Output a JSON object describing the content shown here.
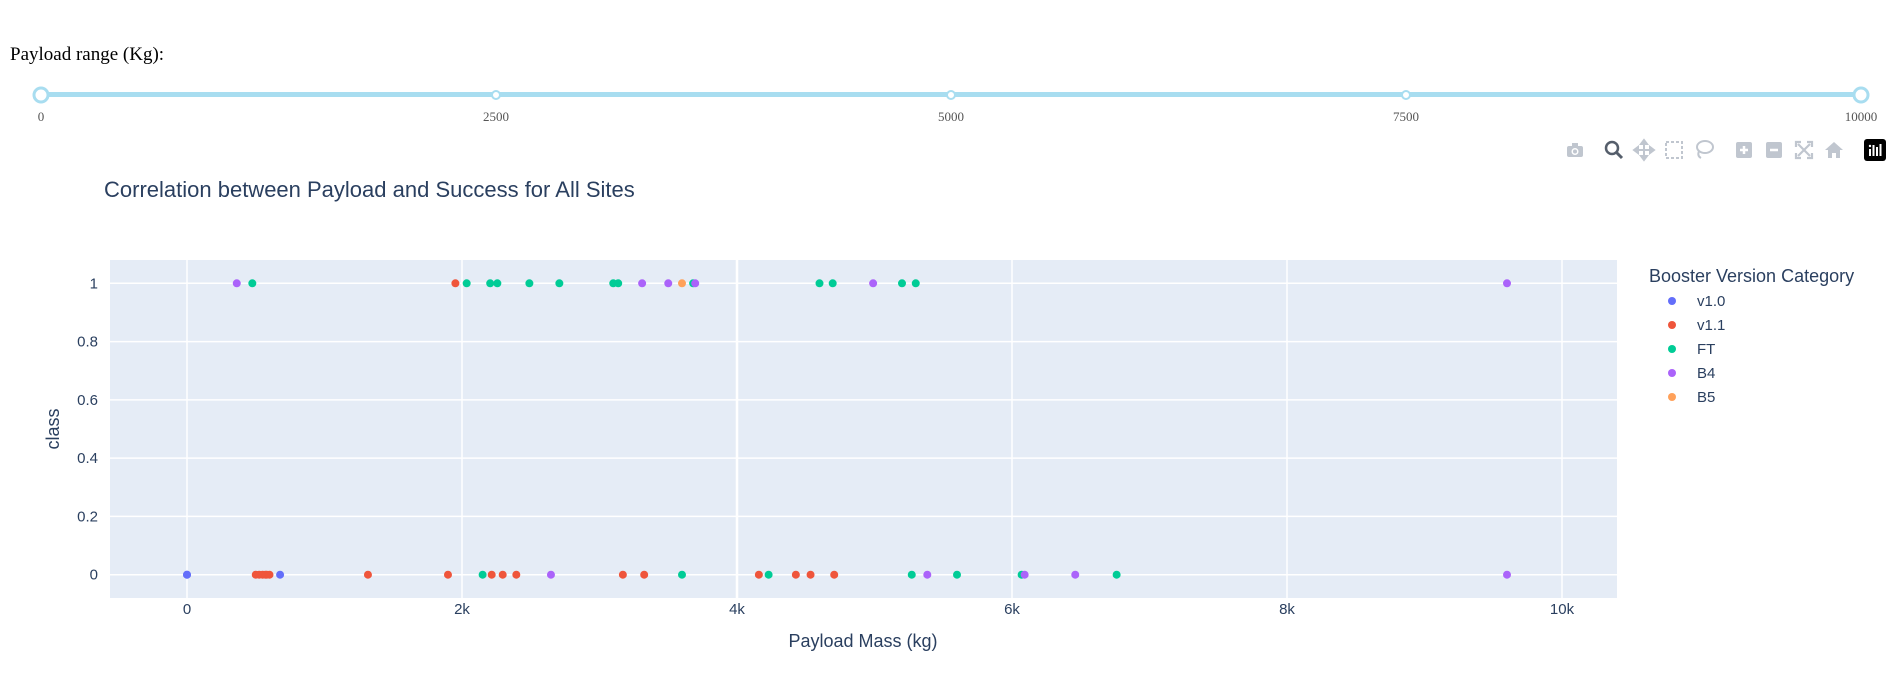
{
  "slider": {
    "label": "Payload range (Kg):",
    "min": 0,
    "max": 10000,
    "value": [
      0,
      10000
    ],
    "marks": [
      "0",
      "2500",
      "5000",
      "7500",
      "10000"
    ],
    "color": "#a8ddf0"
  },
  "toolbar": {
    "icons": [
      "camera-icon",
      "zoom-icon",
      "pan-icon",
      "box-select-icon",
      "lasso-icon",
      "zoom-in-icon",
      "zoom-out-icon",
      "autoscale-icon",
      "reset-axes-icon",
      "plotly-logo-icon"
    ],
    "active": "zoom-icon"
  },
  "chart_data": {
    "type": "scatter",
    "title": "Correlation between Payload and Success for All Sites",
    "xlabel": "Payload Mass (kg)",
    "ylabel": "class",
    "xlim": [
      -560,
      10400
    ],
    "ylim": [
      -0.08,
      1.08
    ],
    "xticks": [
      0,
      2000,
      4000,
      6000,
      8000,
      10000
    ],
    "xtick_labels": [
      "0",
      "2k",
      "4k",
      "6k",
      "8k",
      "10k"
    ],
    "yticks": [
      0,
      0.2,
      0.4,
      0.6,
      0.8,
      1
    ],
    "ytick_labels": [
      "0",
      "0.2",
      "0.4",
      "0.6",
      "0.8",
      "1"
    ],
    "grid": true,
    "plot_bg": "#e5ecf6",
    "legend_title": "Booster Version Category",
    "legend_position": "right",
    "series": [
      {
        "name": "v1.0",
        "color": "#636efa",
        "x": [
          0,
          0,
          677
        ],
        "y": [
          0,
          0,
          0
        ]
      },
      {
        "name": "v1.1",
        "color": "#ef553b",
        "x": [
          500,
          525,
          550,
          570,
          580,
          600,
          1316,
          1898,
          1952,
          2216,
          2296,
          2395,
          3170,
          3325,
          4159,
          4428,
          4535,
          4707
        ],
        "y": [
          0,
          0,
          0,
          0,
          0,
          0,
          0,
          0,
          1,
          0,
          0,
          0,
          0,
          0,
          0,
          0,
          0,
          0
        ]
      },
      {
        "name": "FT",
        "color": "#00cc96",
        "x": [
          475,
          2034,
          2150,
          2205,
          2257,
          2490,
          2708,
          3100,
          3136,
          3600,
          3681,
          4230,
          4600,
          4696,
          5200,
          5300,
          5271,
          5600,
          6070,
          6761
        ],
        "y": [
          1,
          1,
          0,
          1,
          1,
          1,
          1,
          1,
          1,
          0,
          1,
          0,
          1,
          1,
          1,
          1,
          0,
          0,
          0,
          0
        ],
        "rawx_note": ""
      },
      {
        "name": "B4",
        "color": "#ab63fa",
        "x": [
          362,
          2647,
          3310,
          3500,
          3696,
          4990,
          5384,
          6092,
          6460,
          9600,
          9600
        ],
        "y": [
          1,
          0,
          1,
          1,
          1,
          1,
          0,
          0,
          0,
          1,
          0
        ]
      },
      {
        "name": "B5",
        "color": "#ffa15a",
        "x": [
          3600
        ],
        "y": [
          1
        ]
      }
    ]
  }
}
